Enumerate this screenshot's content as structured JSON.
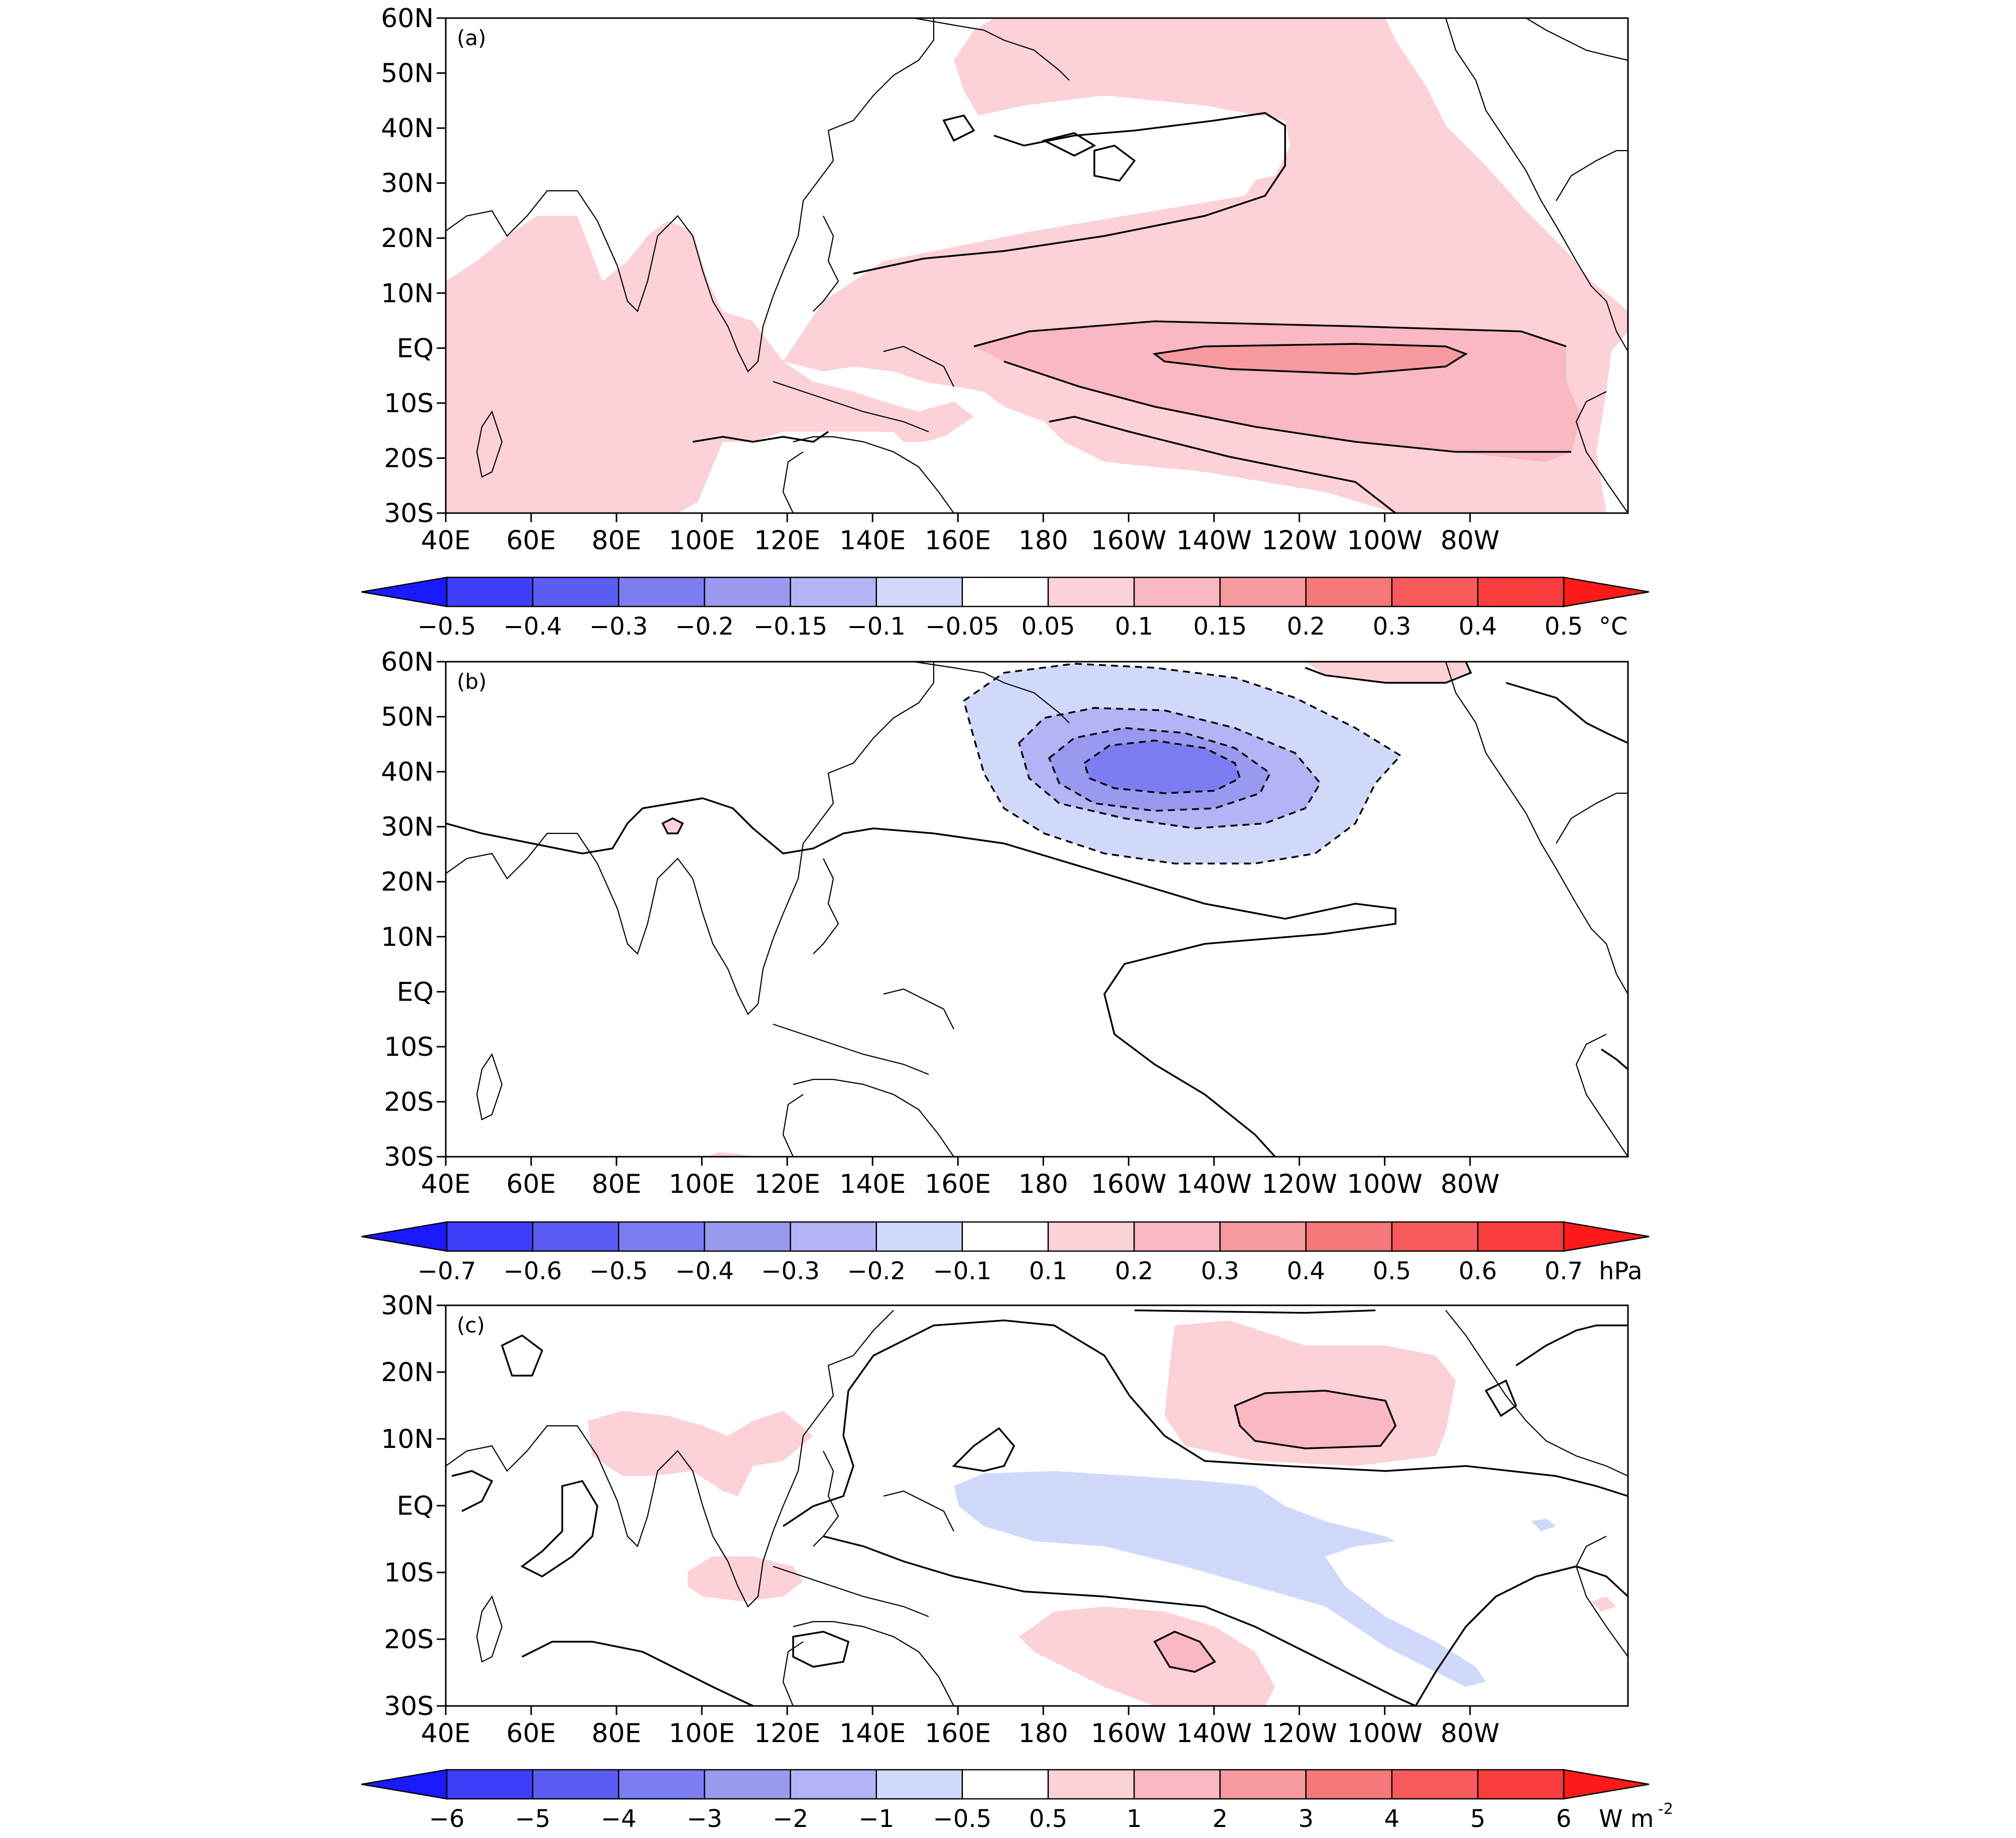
{
  "panels": [
    {
      "id": "a",
      "label": "(a)",
      "y_ticks": [
        "60N",
        "50N",
        "40N",
        "30N",
        "20N",
        "10N",
        "EQ",
        "10S",
        "20S",
        "30S"
      ],
      "x_ticks": [
        "40E",
        "60E",
        "80E",
        "100E",
        "120E",
        "140E",
        "160E",
        "180",
        "160W",
        "140W",
        "120W",
        "100W",
        "80W"
      ],
      "colorbar": {
        "labels": [
          "−0.5",
          "−0.4",
          "−0.3",
          "−0.2",
          "−0.15",
          "−0.1",
          "−0.05",
          "0.05",
          "0.1",
          "0.15",
          "0.2",
          "0.3",
          "0.4",
          "0.5"
        ],
        "unit": "°C"
      }
    },
    {
      "id": "b",
      "label": "(b)",
      "y_ticks": [
        "60N",
        "50N",
        "40N",
        "30N",
        "20N",
        "10N",
        "EQ",
        "10S",
        "20S",
        "30S"
      ],
      "x_ticks": [
        "40E",
        "60E",
        "80E",
        "100E",
        "120E",
        "140E",
        "160E",
        "180",
        "160W",
        "140W",
        "120W",
        "100W",
        "80W"
      ],
      "colorbar": {
        "labels": [
          "−0.7",
          "−0.6",
          "−0.5",
          "−0.4",
          "−0.3",
          "−0.2",
          "−0.1",
          "0.1",
          "0.2",
          "0.3",
          "0.4",
          "0.5",
          "0.6",
          "0.7"
        ],
        "unit": "hPa"
      }
    },
    {
      "id": "c",
      "label": "(c)",
      "y_ticks": [
        "30N",
        "20N",
        "10N",
        "EQ",
        "10S",
        "20S",
        "30S"
      ],
      "x_ticks": [
        "40E",
        "60E",
        "80E",
        "100E",
        "120E",
        "140E",
        "160E",
        "180",
        "160W",
        "140W",
        "120W",
        "100W",
        "80W"
      ],
      "colorbar": {
        "labels": [
          "−6",
          "−5",
          "−4",
          "−3",
          "−2",
          "−1",
          "−0.5",
          "0.5",
          "1",
          "2",
          "3",
          "4",
          "5",
          "6"
        ],
        "unit": "W m",
        "unit_sup": "-2"
      }
    }
  ],
  "colors": {
    "scale": [
      "#1a1aff",
      "#3d3dfa",
      "#5c5cf5",
      "#7d7df2",
      "#9999f0",
      "#b3b3f5",
      "#d1d9fb",
      "#ffffff",
      "#fcd1d8",
      "#f9b8c2",
      "#f69a9f",
      "#f57878",
      "#f75a5a",
      "#fa3d3d",
      "#ff1a1a"
    ],
    "contour": "#000000"
  }
}
